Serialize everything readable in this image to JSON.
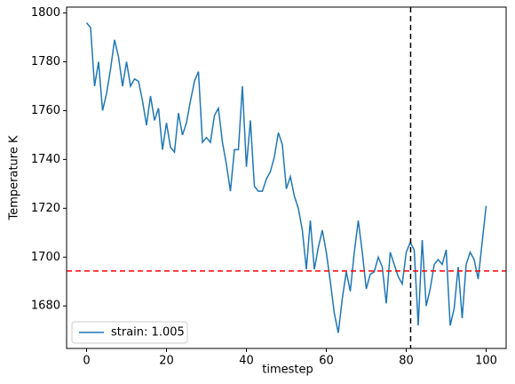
{
  "chart_data": {
    "type": "line",
    "x_label": "timestep",
    "y_label": "Temperature K",
    "x": [
      0,
      1,
      2,
      3,
      4,
      5,
      6,
      7,
      8,
      9,
      10,
      11,
      12,
      13,
      14,
      15,
      16,
      17,
      18,
      19,
      20,
      21,
      22,
      23,
      24,
      25,
      26,
      27,
      28,
      29,
      30,
      31,
      32,
      33,
      34,
      35,
      36,
      37,
      38,
      39,
      40,
      41,
      42,
      43,
      44,
      45,
      46,
      47,
      48,
      49,
      50,
      51,
      52,
      53,
      54,
      55,
      56,
      57,
      58,
      59,
      60,
      61,
      62,
      63,
      64,
      65,
      66,
      67,
      68,
      69,
      70,
      71,
      72,
      73,
      74,
      75,
      76,
      77,
      78,
      79,
      80,
      81,
      82,
      83,
      84,
      85,
      86,
      87,
      88,
      89,
      90,
      91,
      92,
      93,
      94,
      95,
      96,
      97,
      98,
      99,
      100
    ],
    "series": [
      {
        "name": "strain: 1.005",
        "color": "#1f77b4",
        "values": [
          1796,
          1794,
          1770,
          1780,
          1760,
          1767,
          1777,
          1789,
          1782,
          1770,
          1780,
          1770,
          1773,
          1772,
          1764,
          1754,
          1766,
          1756,
          1761,
          1744,
          1755,
          1745,
          1743,
          1759,
          1750,
          1755,
          1764,
          1772,
          1776,
          1747,
          1749,
          1747,
          1758,
          1761,
          1747,
          1738,
          1727,
          1744,
          1744,
          1770,
          1737,
          1756,
          1729,
          1727,
          1727,
          1732,
          1735,
          1741,
          1751,
          1746,
          1728,
          1733,
          1725,
          1720,
          1711,
          1695,
          1715,
          1695,
          1704,
          1711,
          1702,
          1690,
          1677,
          1669,
          1683,
          1694,
          1686,
          1702,
          1715,
          1702,
          1687,
          1693,
          1694,
          1700,
          1696,
          1681,
          1702,
          1697,
          1692,
          1689,
          1702,
          1706,
          1703,
          1672,
          1707,
          1680,
          1687,
          1697,
          1699,
          1697,
          1703,
          1672,
          1679,
          1696,
          1675,
          1697,
          1702,
          1699,
          1691,
          1706,
          1721
        ]
      }
    ],
    "hlines": [
      {
        "value": 1694.3,
        "color": "#ff0000"
      }
    ],
    "vlines": [
      {
        "value": 81.1,
        "color": "#000000"
      }
    ],
    "xlim": [
      -5,
      105
    ],
    "ylim": [
      1662.6,
      1802.4
    ],
    "xticks": [
      0,
      20,
      40,
      60,
      80,
      100
    ],
    "yticks": [
      1680,
      1700,
      1720,
      1740,
      1760,
      1780,
      1800
    ],
    "legend": "lower left"
  }
}
